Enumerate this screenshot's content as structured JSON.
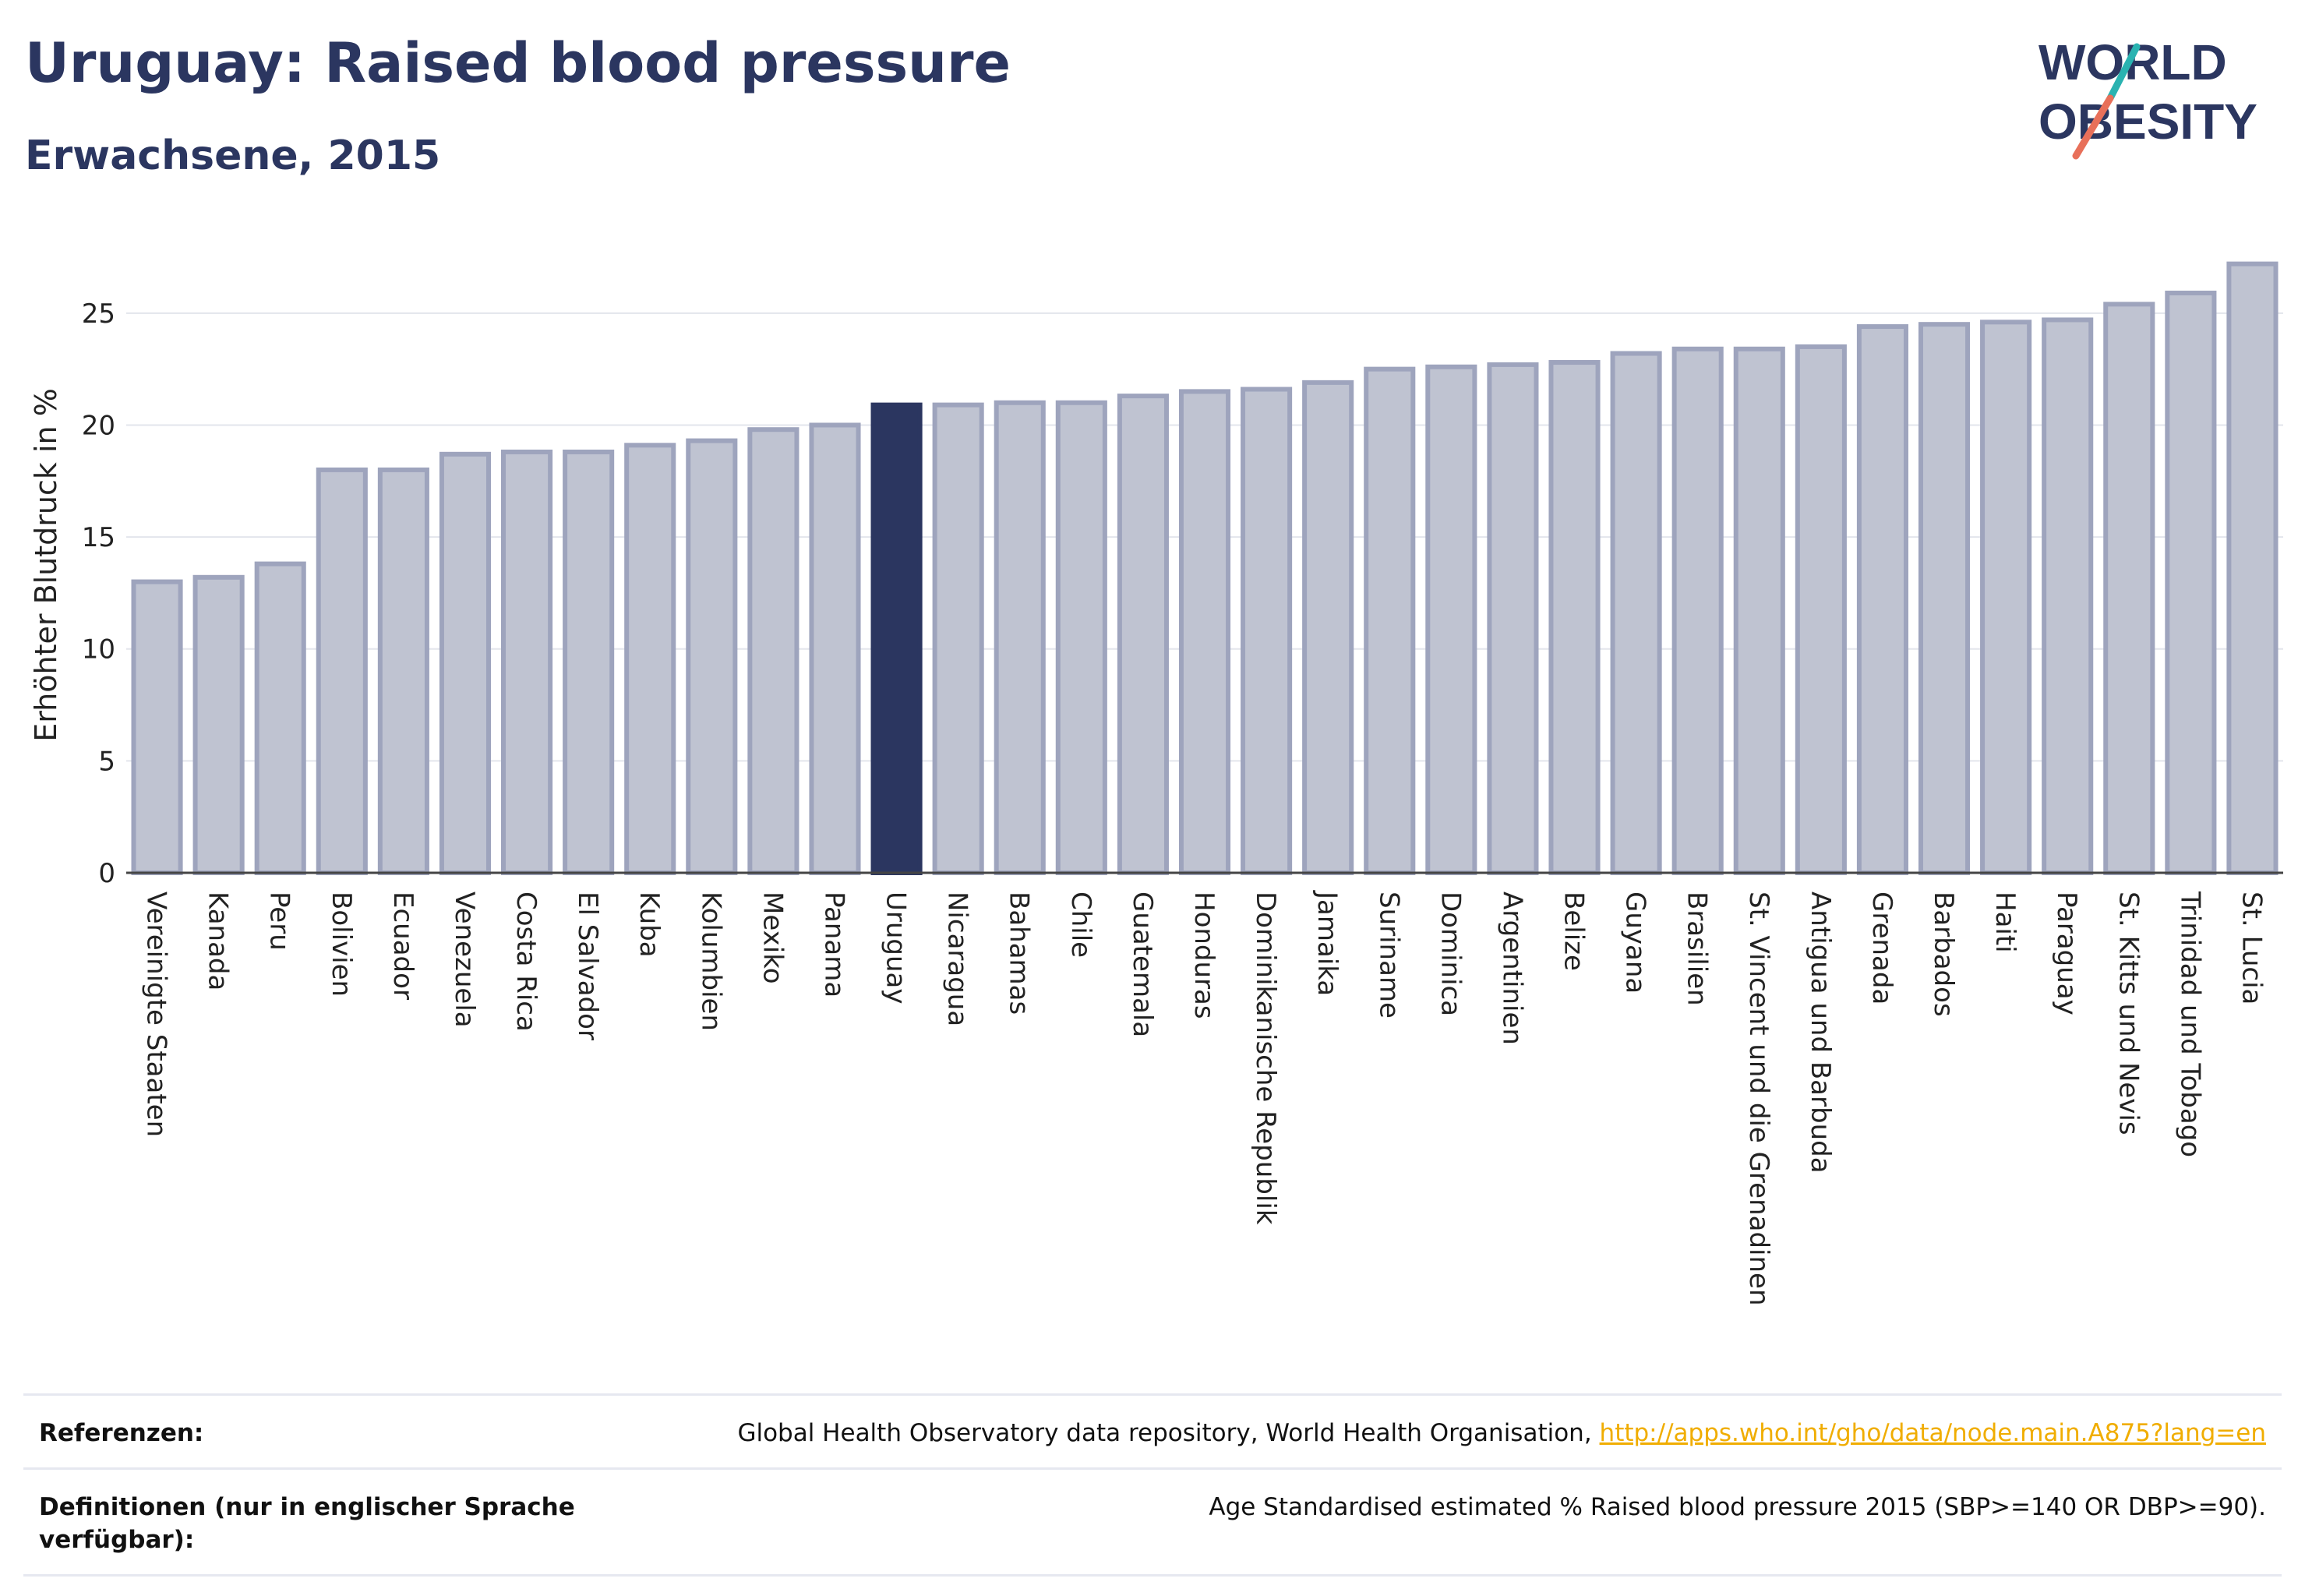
{
  "header": {
    "title": "Uruguay: Raised blood pressure",
    "subtitle": "Erwachsene, 2015"
  },
  "logo": {
    "line1": "WORLD",
    "line2": "OBESITY",
    "accent_colors": [
      "#2ab3b1",
      "#e8705a"
    ]
  },
  "chart_data": {
    "type": "bar",
    "ylabel": "Erhöhter Blutdruck in %",
    "ylim": [
      0,
      27.5
    ],
    "yticks": [
      0,
      5,
      10,
      15,
      20,
      25
    ],
    "grid": true,
    "highlight": "Uruguay",
    "colors": {
      "bar": "#bfc3d1",
      "bar_border": "#9ea4bd",
      "highlight": "#2b3660",
      "grid": "#e3e5ec"
    },
    "categories": [
      "Vereinigte Staaten",
      "Kanada",
      "Peru",
      "Bolivien",
      "Ecuador",
      "Venezuela",
      "Costa Rica",
      "El Salvador",
      "Kuba",
      "Kolumbien",
      "Mexiko",
      "Panama",
      "Uruguay",
      "Nicaragua",
      "Bahamas",
      "Chile",
      "Guatemala",
      "Honduras",
      "Dominikanische Republik",
      "Jamaika",
      "Suriname",
      "Dominica",
      "Argentinien",
      "Belize",
      "Guyana",
      "Brasilien",
      "St. Vincent und die Grenadinen",
      "Antigua und Barbuda",
      "Grenada",
      "Barbados",
      "Haiti",
      "Paraguay",
      "St. Kitts und Nevis",
      "Trinidad und Tobago",
      "St. Lucia"
    ],
    "values": [
      13.0,
      13.2,
      13.8,
      18.0,
      18.0,
      18.7,
      18.8,
      18.8,
      19.1,
      19.3,
      19.8,
      20.0,
      20.9,
      20.9,
      21.0,
      21.0,
      21.3,
      21.5,
      21.6,
      21.9,
      22.5,
      22.6,
      22.7,
      22.8,
      23.2,
      23.4,
      23.4,
      23.5,
      24.4,
      24.5,
      24.6,
      24.7,
      25.4,
      25.9,
      27.2
    ]
  },
  "footer": {
    "references_label": "Referenzen:",
    "references_text": "Global Health Observatory data repository, World Health Organisation, ",
    "references_link": "http://apps.who.int/gho/data/node.main.A875?lang=en",
    "definitions_label": "Definitionen (nur in englischer Sprache verfügbar):",
    "definitions_text": "Age Standardised estimated % Raised blood pressure 2015 (SBP>=140 OR DBP>=90)."
  }
}
